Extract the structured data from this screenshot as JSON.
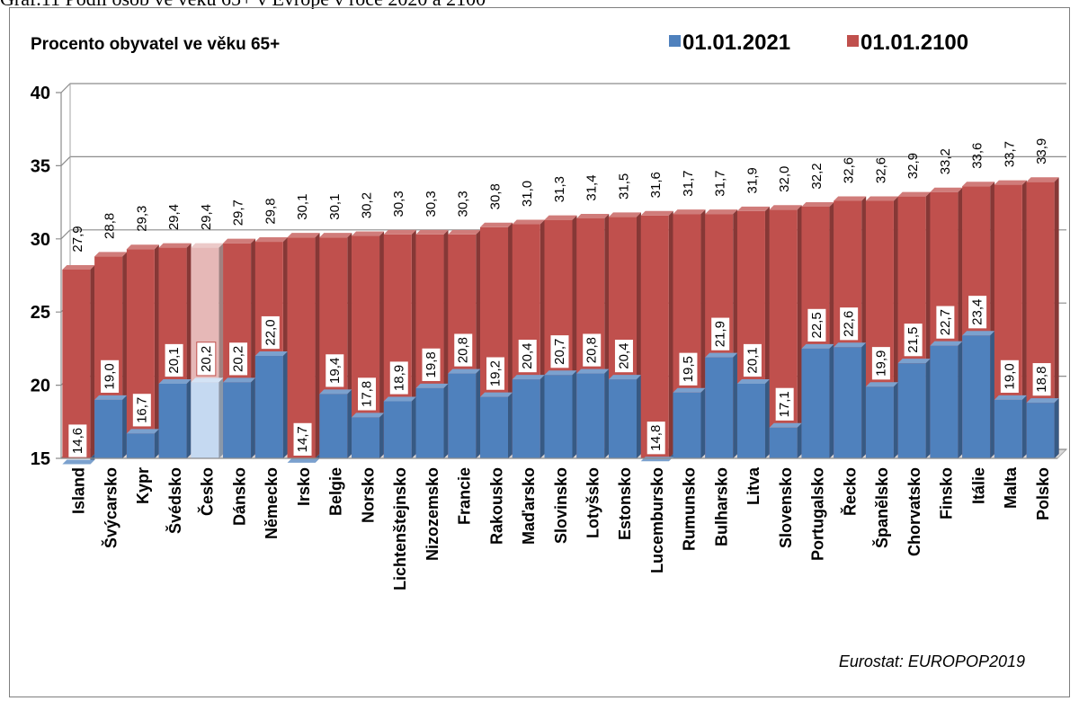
{
  "header_caption": "Graf.11 Podíl osob ve věku 65+ v Evropě v roce 2020 a 2100",
  "chart_data": {
    "type": "bar",
    "title": "Procento obyvatel ve věku 65+",
    "source": "Eurostat: EUROPOP2019",
    "ylim": [
      15,
      40
    ],
    "yticks": [
      15,
      20,
      25,
      30,
      35,
      40
    ],
    "grid": true,
    "legend_position": "top-right",
    "highlight_category": "Česko",
    "categories": [
      "Island",
      "Švýcarsko",
      "Kypr",
      "Švédsko",
      "Česko",
      "Dánsko",
      "Německo",
      "Irsko",
      "Belgie",
      "Norsko",
      "Lichtenštejnsko",
      "Nizozemsko",
      "Francie",
      "Rakousko",
      "Maďarsko",
      "Slovinsko",
      "Lotyšsko",
      "Estonsko",
      "Lucembursko",
      "Rumunsko",
      "Bulharsko",
      "Litva",
      "Slovensko",
      "Portugalsko",
      "Řecko",
      "Španělsko",
      "Chorvatsko",
      "Finsko",
      "Itálie",
      "Malta",
      "Polsko"
    ],
    "series": [
      {
        "name": "01.01.2021",
        "color": "#4f81bd",
        "values": [
          14.6,
          19.0,
          16.7,
          20.1,
          20.2,
          20.2,
          22.0,
          14.7,
          19.4,
          17.8,
          18.9,
          19.8,
          20.8,
          19.2,
          20.4,
          20.7,
          20.8,
          20.4,
          14.8,
          19.5,
          21.9,
          20.1,
          17.1,
          22.5,
          22.6,
          19.9,
          21.5,
          22.7,
          23.4,
          19.0,
          18.8
        ]
      },
      {
        "name": "01.01.2100",
        "color": "#c0504d",
        "values": [
          27.9,
          28.8,
          29.3,
          29.4,
          29.4,
          29.7,
          29.8,
          30.1,
          30.1,
          30.2,
          30.3,
          30.3,
          30.3,
          30.8,
          31.0,
          31.3,
          31.4,
          31.5,
          31.6,
          31.7,
          31.7,
          31.9,
          32.0,
          32.2,
          32.6,
          32.6,
          32.9,
          33.2,
          33.6,
          33.7,
          33.9
        ]
      }
    ]
  }
}
